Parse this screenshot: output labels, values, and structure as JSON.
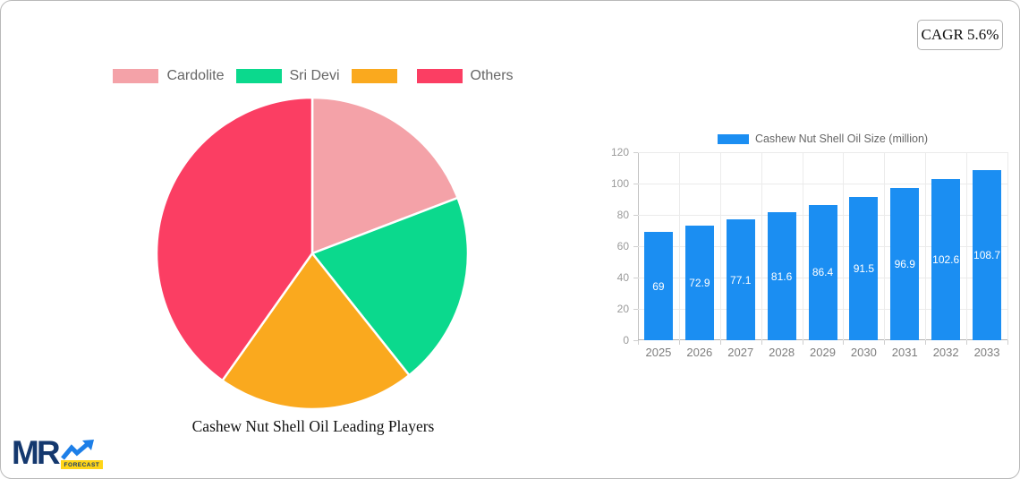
{
  "ui": {
    "cagr_badge": "CAGR 5.6%",
    "logo": {
      "mr_text": "MR",
      "forecast_text": "FORECAST"
    }
  },
  "chart_data": [
    {
      "type": "pie",
      "title": "Cashew Nut Shell Oil Leading Players",
      "legend_position": "top",
      "labels": [
        "Cardolite",
        "Sri Devi",
        "",
        "Others"
      ],
      "values": [
        19.2,
        20.1,
        20.5,
        40.2
      ],
      "colors": [
        "#f4a2a8",
        "#0bd98d",
        "#faa91e",
        "#fb3e63"
      ]
    },
    {
      "type": "bar",
      "legend": "Cashew Nut Shell Oil Size (million)",
      "legend_position": "top",
      "categories": [
        "2025",
        "2026",
        "2027",
        "2028",
        "2029",
        "2030",
        "2031",
        "2032",
        "2033"
      ],
      "values": [
        69,
        72.9,
        77.1,
        81.6,
        86.4,
        91.5,
        96.9,
        102.6,
        108.7
      ],
      "bar_color": "#1b8ef2",
      "ylim": [
        0,
        120
      ],
      "y_ticks": [
        0,
        20,
        40,
        60,
        80,
        100,
        120
      ],
      "grid": true
    }
  ]
}
